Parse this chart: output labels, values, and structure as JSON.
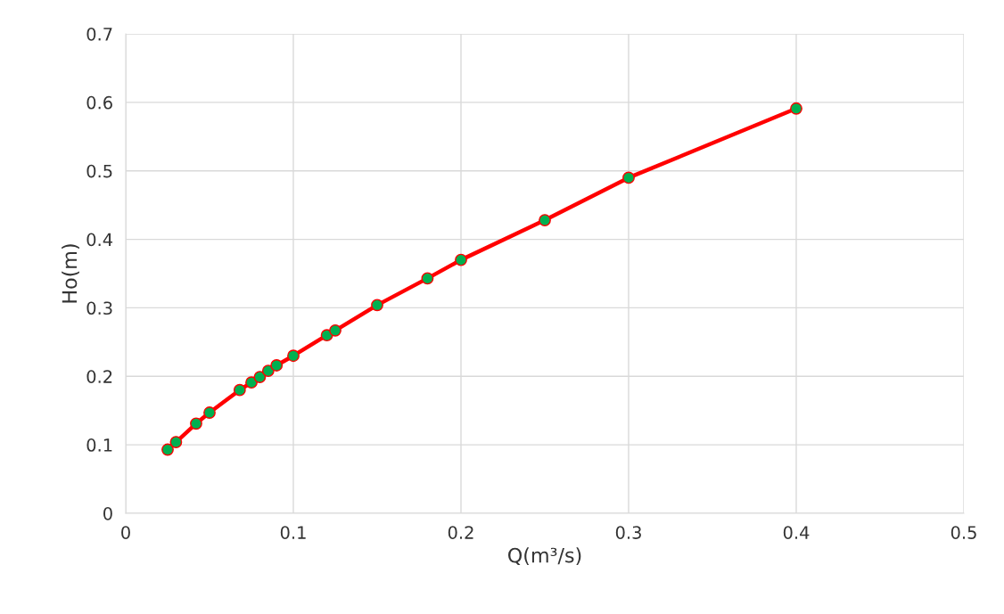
{
  "chart_data": {
    "type": "line",
    "xlabel": "Q(m³/s)",
    "ylabel": "Ho(m)",
    "x": [
      0.025,
      0.03,
      0.042,
      0.05,
      0.068,
      0.075,
      0.08,
      0.085,
      0.09,
      0.1,
      0.12,
      0.125,
      0.15,
      0.18,
      0.2,
      0.25,
      0.3,
      0.4
    ],
    "series": [
      {
        "color": "#ff0000",
        "colors": [
          "#00b050",
          "#00b050",
          "#00b050",
          "#00b050",
          "#00b050",
          "#00b050",
          "#00b050",
          "#00b050",
          "#00b050",
          "#00b050",
          "#00b050",
          "#00b050",
          "#00b050",
          "#00b050",
          "#00b050",
          "#00b050",
          "#00b050",
          "#00b050"
        ],
        "values": [
          0.093,
          0.104,
          0.131,
          0.147,
          0.18,
          0.191,
          0.199,
          0.208,
          0.216,
          0.23,
          0.26,
          0.267,
          0.304,
          0.343,
          0.37,
          0.428,
          0.49,
          0.591
        ]
      }
    ],
    "xlim": [
      0,
      0.5
    ],
    "xticks": [
      0,
      0.1,
      0.2,
      0.3,
      0.4,
      0.5
    ],
    "ylim": [
      0,
      0.7
    ],
    "yticks": [
      0,
      0.1,
      0.2,
      0.3,
      0.4,
      0.5,
      0.6,
      0.7
    ],
    "grid": true,
    "marker": "circle",
    "line_style": "solid"
  }
}
